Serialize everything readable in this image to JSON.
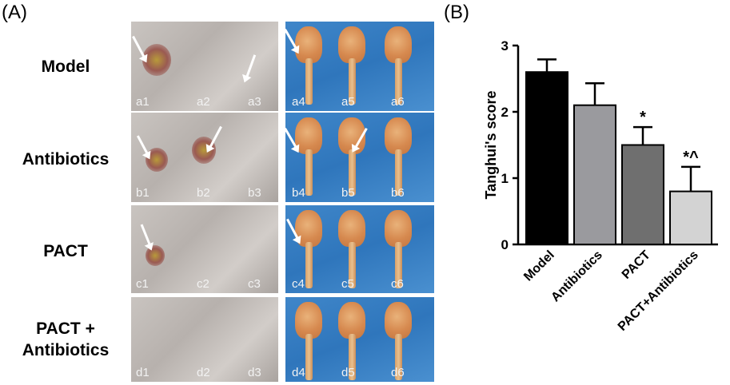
{
  "panels": {
    "a": "(A)",
    "b": "(B)"
  },
  "rows": [
    {
      "label": "Model",
      "tiles": [
        "a1",
        "a2",
        "a3",
        "a4",
        "a5",
        "a6"
      ]
    },
    {
      "label": "Antibiotics",
      "tiles": [
        "b1",
        "b2",
        "b3",
        "b4",
        "b5",
        "b6"
      ]
    },
    {
      "label": "PACT",
      "tiles": [
        "c1",
        "c2",
        "c3",
        "c4",
        "c5",
        "c6"
      ]
    },
    {
      "label_line1": "PACT  +",
      "label_line2": "Antibiotics",
      "tiles": [
        "d1",
        "d2",
        "d3",
        "d4",
        "d5",
        "d6"
      ]
    }
  ],
  "chart_data": {
    "type": "bar",
    "categories": [
      "Model",
      "Antibiotics",
      "PACT",
      "PACT+Antibiotics"
    ],
    "values": [
      2.6,
      2.1,
      1.5,
      0.8
    ],
    "errors": [
      0.19,
      0.33,
      0.27,
      0.37
    ],
    "significance": [
      "",
      "",
      "*",
      "*^"
    ],
    "bar_colors": [
      "#000000",
      "#9a9a9e",
      "#6f6f6f",
      "#d3d3d3"
    ],
    "title": "",
    "xlabel": "",
    "ylabel": "Tanghui's score",
    "ylim": [
      0,
      3
    ],
    "yticks": [
      0,
      1,
      2,
      3
    ],
    "grid": false,
    "legend": "none"
  }
}
